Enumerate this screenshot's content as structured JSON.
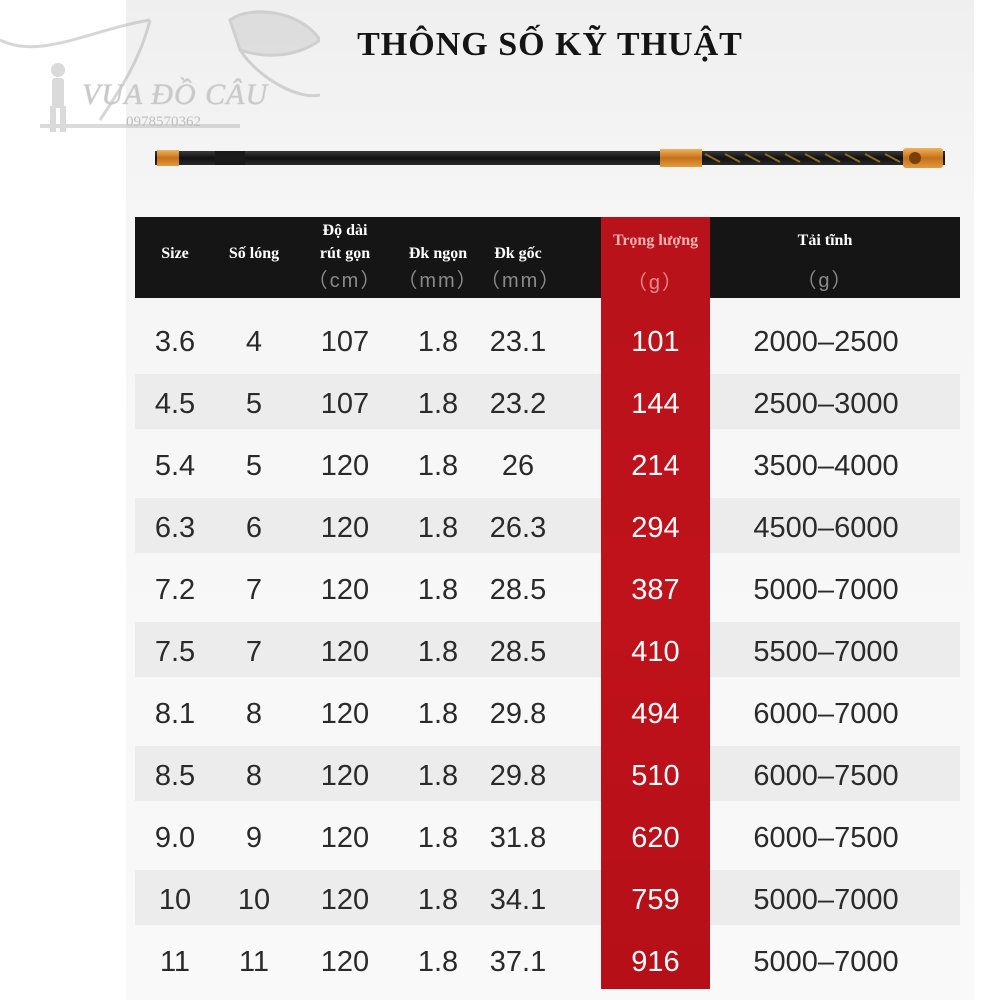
{
  "title": "THÔNG SỐ KỸ THUẬT",
  "logo": {
    "brand": "VUA ĐỒ CÂU",
    "phone": "0978570362"
  },
  "table": {
    "headers": [
      {
        "key": "size",
        "label": "Size",
        "unit": ""
      },
      {
        "key": "so_long",
        "label": "Số lóng",
        "unit": ""
      },
      {
        "key": "do_dai",
        "label_line1": "Độ dài",
        "label_line2": "rút gọn",
        "unit": "（cm）"
      },
      {
        "key": "dk_ngon",
        "label": "Đk ngọn",
        "unit": "（mm）"
      },
      {
        "key": "dk_goc",
        "label": "Đk gốc",
        "unit": "（mm）"
      },
      {
        "key": "trong_luong",
        "label": "Trọng lượng",
        "unit": "（g）"
      },
      {
        "key": "tai_tinh",
        "label": "Tải tĩnh",
        "unit": "（g）"
      }
    ],
    "rows": [
      [
        "3.6",
        "4",
        "107",
        "1.8",
        "23.1",
        "101",
        "2000–2500"
      ],
      [
        "4.5",
        "5",
        "107",
        "1.8",
        "23.2",
        "144",
        "2500–3000"
      ],
      [
        "5.4",
        "5",
        "120",
        "1.8",
        "26",
        "214",
        "3500–4000"
      ],
      [
        "6.3",
        "6",
        "120",
        "1.8",
        "26.3",
        "294",
        "4500–6000"
      ],
      [
        "7.2",
        "7",
        "120",
        "1.8",
        "28.5",
        "387",
        "5000–7000"
      ],
      [
        "7.5",
        "7",
        "120",
        "1.8",
        "28.5",
        "410",
        "5500–7000"
      ],
      [
        "8.1",
        "8",
        "120",
        "1.8",
        "29.8",
        "494",
        "6000–7000"
      ],
      [
        "8.5",
        "8",
        "120",
        "1.8",
        "29.8",
        "510",
        "6000–7500"
      ],
      [
        "9.0",
        "9",
        "120",
        "1.8",
        "31.8",
        "620",
        "6000–7500"
      ],
      [
        "10",
        "10",
        "120",
        "1.8",
        "34.1",
        "759",
        "5000–7000"
      ],
      [
        "11",
        "11",
        "120",
        "1.8",
        "37.1",
        "916",
        "5000–7000"
      ]
    ]
  },
  "colors": {
    "header_bg": "#151515",
    "highlight": "#c0121b",
    "accent_gold": "#d8862a"
  }
}
